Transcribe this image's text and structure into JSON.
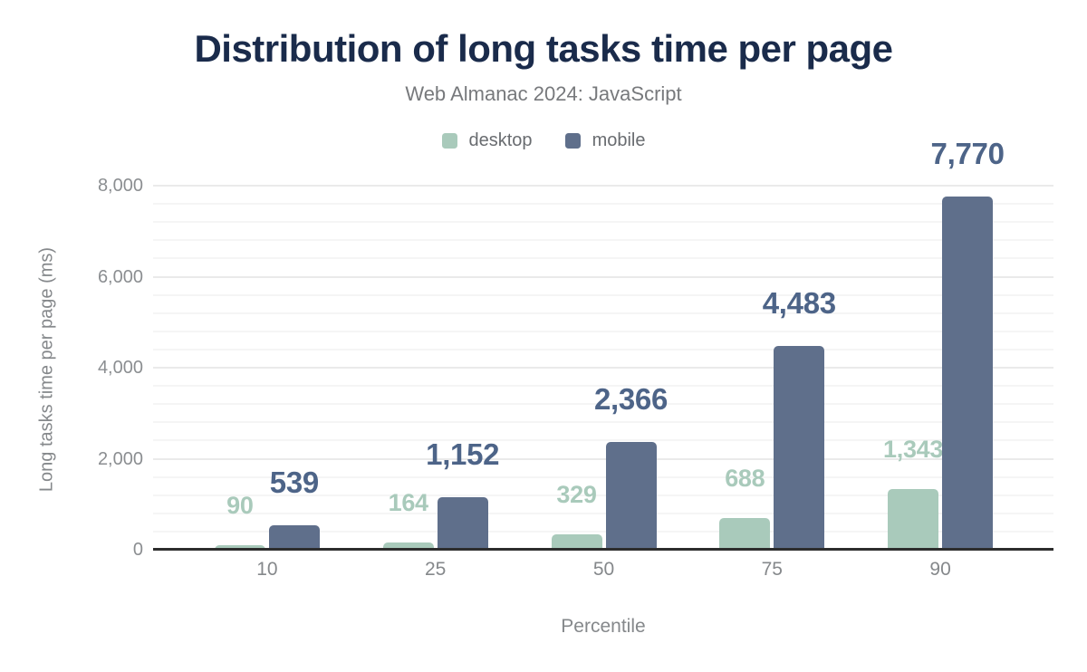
{
  "chart_data": {
    "type": "bar",
    "title": "Distribution of long tasks time per page",
    "subtitle": "Web Almanac 2024: JavaScript",
    "xlabel": "Percentile",
    "ylabel": "Long tasks time per page (ms)",
    "categories": [
      "10",
      "25",
      "50",
      "75",
      "90"
    ],
    "series": [
      {
        "name": "desktop",
        "color": "#a9cabb",
        "label_color": "#a9cabb",
        "values": [
          90,
          164,
          329,
          688,
          1343
        ],
        "labels": [
          "90",
          "164",
          "329",
          "688",
          "1,343"
        ]
      },
      {
        "name": "mobile",
        "color": "#5f6f8b",
        "label_color": "#4d6488",
        "values": [
          539,
          1152,
          2366,
          4483,
          7770
        ],
        "labels": [
          "539",
          "1,152",
          "2,366",
          "4,483",
          "7,770"
        ]
      }
    ],
    "ylim": [
      0,
      8000
    ],
    "ytick_interval": 2000,
    "minor_tick_interval": 400,
    "yticks": [
      "0",
      "2,000",
      "4,000",
      "6,000",
      "8,000"
    ],
    "grid": true,
    "legend_position": "top",
    "colors": {
      "title": "#1a2b4b",
      "axis_line": "#2d2d2d",
      "tick_text": "#85888b"
    }
  }
}
